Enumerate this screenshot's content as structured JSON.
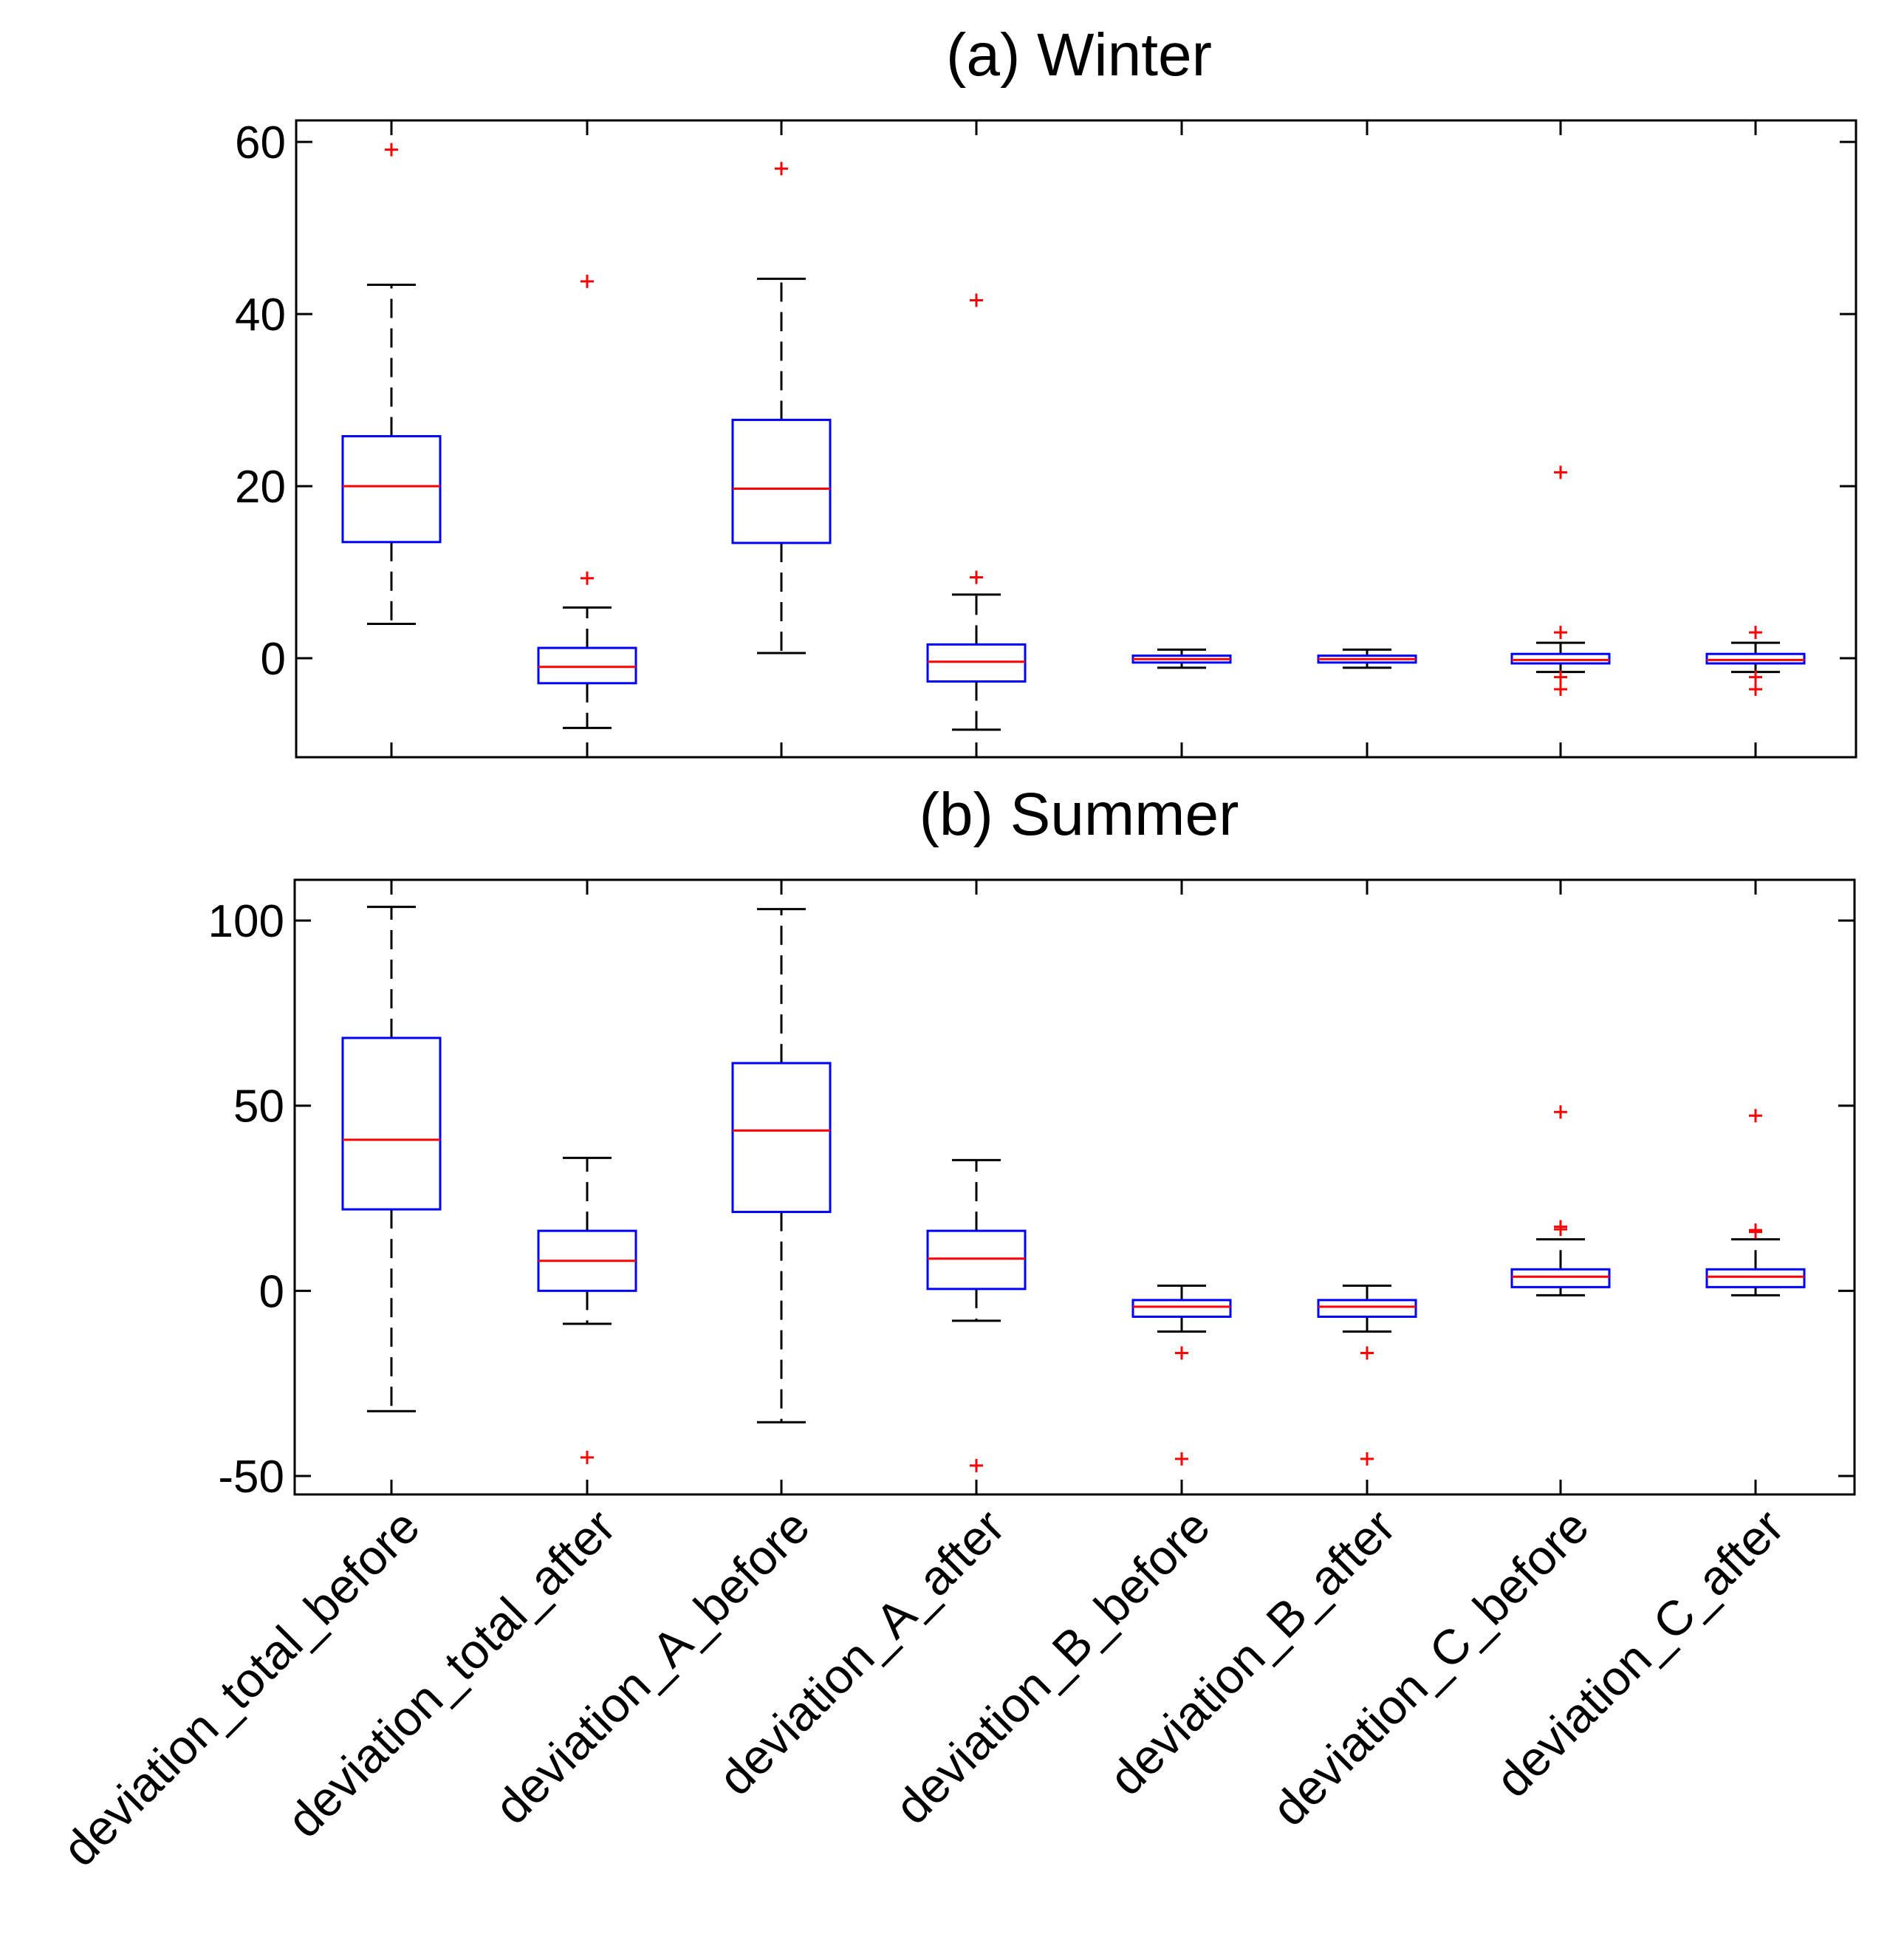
{
  "chart_data": [
    {
      "type": "box",
      "title": "(a) Winter",
      "categories": [
        "deviation_total_before",
        "deviation_total_after",
        "deviation_A_before",
        "deviation_A_after",
        "deviation_B_before",
        "deviation_B_after",
        "deviation_C_before",
        "deviation_C_after"
      ],
      "ylim": [
        -11.5,
        62.5
      ],
      "yticks": [
        0,
        20,
        40,
        60
      ],
      "boxes": [
        {
          "whisker_low": 4,
          "q1": 13.5,
          "median": 20,
          "q3": 25.8,
          "whisker_high": 43.4,
          "outliers": [
            59.1
          ]
        },
        {
          "whisker_low": -8.1,
          "q1": -2.9,
          "median": -1,
          "q3": 1.2,
          "whisker_high": 5.9,
          "outliers": [
            9.3,
            43.8
          ]
        },
        {
          "whisker_low": 0.6,
          "q1": 13.4,
          "median": 19.7,
          "q3": 27.7,
          "whisker_high": 44.1,
          "outliers": [
            56.9
          ]
        },
        {
          "whisker_low": -8.3,
          "q1": -2.7,
          "median": -0.4,
          "q3": 1.6,
          "whisker_high": 7.4,
          "outliers": [
            9.4,
            41.6
          ]
        },
        {
          "whisker_low": -1.1,
          "q1": -0.5,
          "median": -0.1,
          "q3": 0.3,
          "whisker_high": 1,
          "outliers": []
        },
        {
          "whisker_low": -1.1,
          "q1": -0.5,
          "median": -0.1,
          "q3": 0.3,
          "whisker_high": 1,
          "outliers": []
        },
        {
          "whisker_low": -1.6,
          "q1": -0.6,
          "median": -0.2,
          "q3": 0.5,
          "whisker_high": 1.8,
          "outliers": [
            3,
            -2.2,
            -3.6,
            21.6
          ]
        },
        {
          "whisker_low": -1.6,
          "q1": -0.6,
          "median": -0.2,
          "q3": 0.5,
          "whisker_high": 1.8,
          "outliers": [
            3,
            -2.2,
            -3.6
          ]
        }
      ]
    },
    {
      "type": "box",
      "title": "(b) Summer",
      "categories": [
        "deviation_total_before",
        "deviation_total_after",
        "deviation_A_before",
        "deviation_A_after",
        "deviation_B_before",
        "deviation_B_after",
        "deviation_C_before",
        "deviation_C_after"
      ],
      "ylim": [
        -55,
        111
      ],
      "yticks": [
        -50,
        0,
        50,
        100
      ],
      "boxes": [
        {
          "whisker_low": -32.5,
          "q1": 22,
          "median": 40.8,
          "q3": 68.3,
          "whisker_high": 103.7,
          "outliers": []
        },
        {
          "whisker_low": -8.9,
          "q1": 0,
          "median": 8.1,
          "q3": 16.2,
          "whisker_high": 35.9,
          "outliers": [
            -45
          ]
        },
        {
          "whisker_low": -35.5,
          "q1": 21.3,
          "median": 43.3,
          "q3": 61.5,
          "whisker_high": 103.1,
          "outliers": []
        },
        {
          "whisker_low": -8.1,
          "q1": 0.5,
          "median": 8.7,
          "q3": 16.2,
          "whisker_high": 35.3,
          "outliers": [
            -47.2
          ]
        },
        {
          "whisker_low": -11,
          "q1": -7,
          "median": -4.3,
          "q3": -2.5,
          "whisker_high": 1.4,
          "outliers": [
            -16.8,
            -45.4
          ]
        },
        {
          "whisker_low": -11,
          "q1": -7,
          "median": -4.3,
          "q3": -2.5,
          "whisker_high": 1.4,
          "outliers": [
            -16.8,
            -45.4
          ]
        },
        {
          "whisker_low": -1.2,
          "q1": 1,
          "median": 3.8,
          "q3": 5.8,
          "whisker_high": 13.9,
          "outliers": [
            16.6,
            17.3,
            48.3
          ]
        },
        {
          "whisker_low": -1.2,
          "q1": 1,
          "median": 3.8,
          "q3": 5.8,
          "whisker_high": 13.9,
          "outliers": [
            15.9,
            16.4,
            47.3
          ]
        }
      ]
    }
  ]
}
